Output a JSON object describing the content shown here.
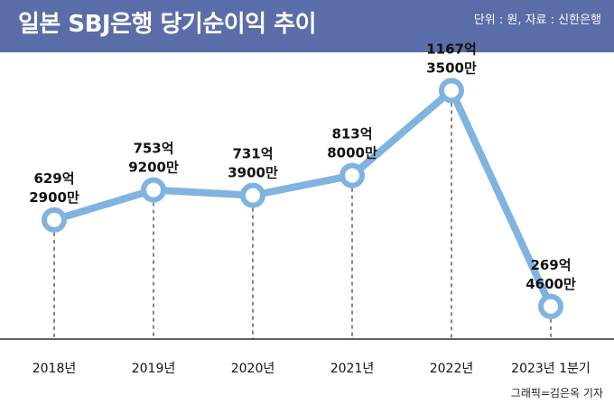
{
  "header": {
    "title": "일본 SBJ은행 당기순이익 추이",
    "unit_source": "단위 : 원, 자료 : 신한은행"
  },
  "footer": {
    "credit": "그래픽=김은옥 기자"
  },
  "colors": {
    "header_bg": "#5a6da8",
    "line": "#7fb3e0",
    "marker_fill": "#ffffff",
    "text": "#111111"
  },
  "chart_data": {
    "type": "line",
    "title": "일본 SBJ은행 당기순이익 추이",
    "categories": [
      "2018년",
      "2019년",
      "2020년",
      "2021년",
      "2022년",
      "2023년 1분기"
    ],
    "values": [
      62929000000,
      75392000000,
      73139000000,
      81380000000,
      116735000000,
      26946000000
    ],
    "data_labels": [
      [
        "629억",
        "2900만"
      ],
      [
        "753억",
        "9200만"
      ],
      [
        "731억",
        "3900만"
      ],
      [
        "813억",
        "8000만"
      ],
      [
        "1167억",
        "3500만"
      ],
      [
        "269억",
        "4600만"
      ]
    ],
    "ylim": [
      10000000000,
      130000000000
    ],
    "grid": false,
    "drop_lines": true
  }
}
